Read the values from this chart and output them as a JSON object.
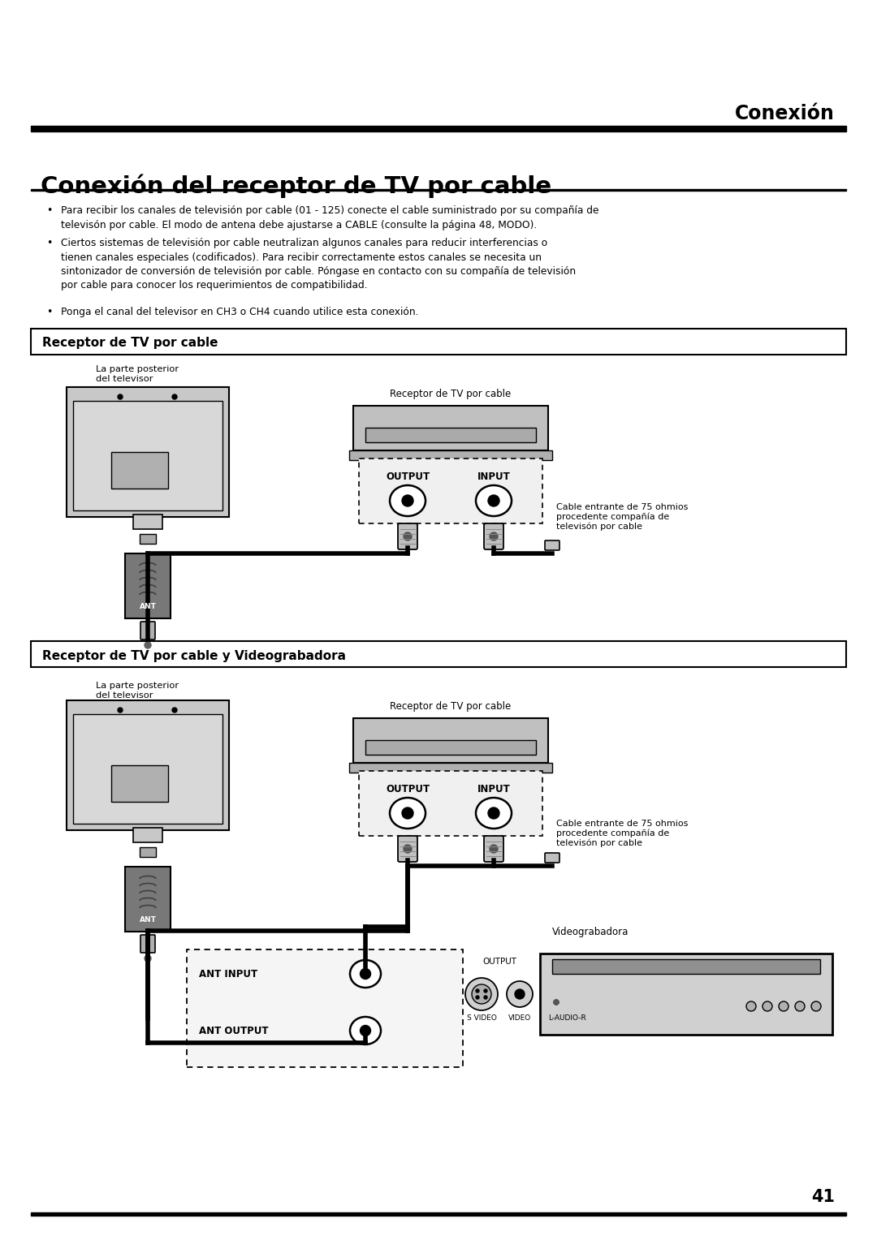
{
  "page_width": 10.8,
  "page_height": 15.28,
  "bg_color": "#ffffff",
  "top_label": "Conexión",
  "main_title": "Conexión del receptor de TV por cable",
  "bullet1": "Para recibir los canales de televisión por cable (01 - 125) conecte el cable suministrado por su compañía de\ntelevisón por cable. El modo de antena debe ajustarse a CABLE (consulte la página 48, MODO).",
  "bullet2": "Ciertos sistemas de televisión por cable neutralizan algunos canales para reducir interferencias o\ntienen canales especiales (codificados). Para recibir correctamente estos canales se necesita un\nsintonizador de conversión de televisión por cable. Póngase en contacto con su compañía de televisión\npor cable para conocer los requerimientos de compatibilidad.",
  "bullet3": "Ponga el canal del televisor en CH3 o CH4 cuando utilice esta conexión.",
  "section1_title": "Receptor de TV por cable",
  "section2_title": "Receptor de TV por cable y Videograbadora",
  "label_tv_back": "La parte posterior\ndel televisor",
  "label_cable_box": "Receptor de TV por cable",
  "label_output": "OUTPUT",
  "label_input": "INPUT",
  "label_cable_note": "Cable entrante de 75 ohmios\nprocedente compañía de\ntelevisón por cable",
  "label_ant_input": "ANT INPUT",
  "label_ant_output": "ANT OUTPUT",
  "label_output_lower": "OUTPUT",
  "label_s_video": "S VIDEO",
  "label_video": "VIDEO",
  "label_l_audio_r": "L-AUDIO-R",
  "label_videograbadora": "Videograbadora",
  "page_number": "41",
  "tv_color": "#c8c8c8",
  "tv_dark": "#888888",
  "cable_box_color": "#c0c0c0",
  "ant_box_color": "#808080",
  "connector_color": "#e0e0e0",
  "line_color": "#000000"
}
